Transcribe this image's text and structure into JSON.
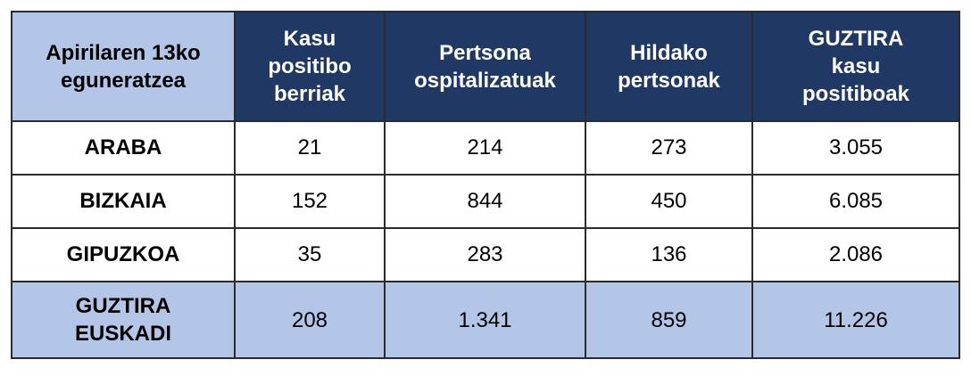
{
  "table": {
    "header": [
      [
        "Apirilaren 13ko",
        "eguneratzea"
      ],
      [
        "Kasu",
        "positibo",
        "berriak"
      ],
      [
        "Pertsona",
        "ospitalizatuak"
      ],
      [
        "Hildako",
        "pertsonak"
      ],
      [
        "GUZTIRA",
        "kasu",
        "positiboak"
      ]
    ],
    "rows": [
      [
        [
          "ARABA"
        ],
        "21",
        "214",
        "273",
        "3.055"
      ],
      [
        [
          "BIZKAIA"
        ],
        "152",
        "844",
        "450",
        "6.085"
      ],
      [
        [
          "GIPUZKOA"
        ],
        "35",
        "283",
        "136",
        "2.086"
      ],
      [
        [
          "GUZTIRA",
          "EUSKADI"
        ],
        "208",
        "1.341",
        "859",
        "11.226"
      ]
    ]
  }
}
